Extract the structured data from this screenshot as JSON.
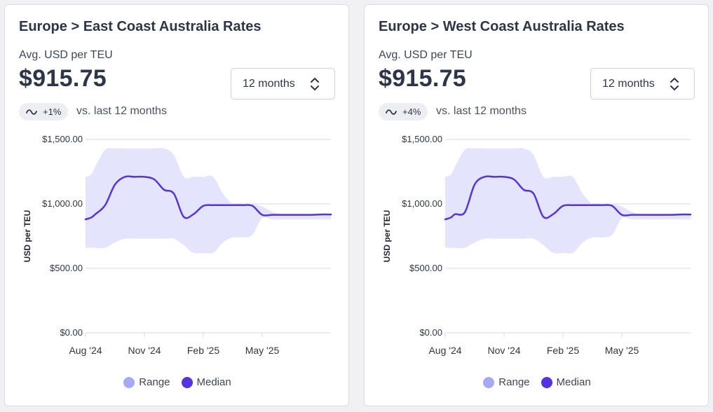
{
  "colors": {
    "range_fill": "#e4e5fc",
    "range_swatch": "#a6a9f6",
    "median": "#5533e0",
    "grid": "#d8dae0",
    "axis_text": "#2d3648"
  },
  "cards": [
    {
      "title": "Europe > East Coast Australia Rates",
      "metric_label": "Avg. USD per TEU",
      "metric_value": "$915.75",
      "period_select": "12 months",
      "period_icon": "chevron-up-down-icon",
      "trend_icon": "tilde-trend-icon",
      "change": "+1%",
      "change_caption": "vs. last 12 months",
      "legend": [
        {
          "label": "Range",
          "swatch": "range"
        },
        {
          "label": "Median",
          "swatch": "median"
        }
      ]
    },
    {
      "title": "Europe > West Coast Australia Rates",
      "metric_label": "Avg. USD per TEU",
      "metric_value": "$915.75",
      "period_select": "12 months",
      "period_icon": "chevron-up-down-icon",
      "trend_icon": "tilde-trend-icon",
      "change": "+4%",
      "change_caption": "vs. last 12 months",
      "legend": [
        {
          "label": "Range",
          "swatch": "range"
        },
        {
          "label": "Median",
          "swatch": "median"
        }
      ]
    }
  ],
  "chart_data": [
    {
      "type": "area",
      "title": "",
      "xlabel": "",
      "ylabel": "USD per TEU",
      "ylim": [
        0,
        1500
      ],
      "yticks": [
        0,
        500,
        1000,
        1500
      ],
      "ytick_labels": [
        "$0.00",
        "$500.00",
        "$1,000.00",
        "$1,500.00"
      ],
      "xticks": [
        "Aug '24",
        "Nov '24",
        "Feb '25",
        "May '25"
      ],
      "x_month_positions": [
        0,
        3,
        6,
        9
      ],
      "x_month_range": [
        0,
        12.5
      ],
      "grid": true,
      "legend_placement": "bottom-center",
      "series": [
        {
          "name": "Range",
          "kind": "band",
          "x": [
            0,
            0.3,
            0.5,
            1,
            1.5,
            2,
            2.5,
            3,
            3.5,
            4,
            4.5,
            5,
            5.5,
            6,
            6.5,
            7,
            7.5,
            8,
            8.5,
            9,
            9.5,
            10,
            10.5,
            11,
            11.5,
            12,
            12.5
          ],
          "low": [
            660,
            660,
            660,
            660,
            700,
            730,
            730,
            730,
            730,
            730,
            730,
            680,
            620,
            620,
            620,
            700,
            740,
            740,
            760,
            890,
            880,
            880,
            880,
            880,
            880,
            880,
            880
          ],
          "high": [
            1210,
            1230,
            1290,
            1420,
            1430,
            1430,
            1430,
            1430,
            1430,
            1430,
            1380,
            1210,
            1210,
            1210,
            1210,
            1080,
            1000,
            1000,
            1000,
            980,
            940,
            920,
            920,
            920,
            920,
            920,
            920
          ]
        },
        {
          "name": "Median",
          "kind": "line",
          "x": [
            0,
            0.3,
            0.5,
            1,
            1.5,
            2,
            2.5,
            3,
            3.5,
            4,
            4.5,
            5,
            5.5,
            6,
            6.5,
            7,
            7.5,
            8,
            8.5,
            9,
            9.5,
            10,
            10.5,
            11,
            11.5,
            12,
            12.5
          ],
          "values": [
            880,
            895,
            920,
            990,
            1150,
            1210,
            1210,
            1210,
            1190,
            1110,
            1080,
            900,
            920,
            985,
            990,
            990,
            990,
            990,
            985,
            915,
            915,
            915,
            915,
            915,
            915,
            918,
            918
          ]
        }
      ]
    },
    {
      "type": "area",
      "title": "",
      "xlabel": "",
      "ylabel": "USD per TEU",
      "ylim": [
        0,
        1500
      ],
      "yticks": [
        0,
        500,
        1000,
        1500
      ],
      "ytick_labels": [
        "$0.00",
        "$500.00",
        "$1,000.00",
        "$1,500.00"
      ],
      "xticks": [
        "Aug '24",
        "Nov '24",
        "Feb '25",
        "May '25"
      ],
      "x_month_positions": [
        0,
        3,
        6,
        9
      ],
      "x_month_range": [
        0,
        12.5
      ],
      "grid": true,
      "legend_placement": "bottom-center",
      "series": [
        {
          "name": "Range",
          "kind": "band",
          "x": [
            0,
            0.3,
            0.5,
            1,
            1.5,
            2,
            2.5,
            3,
            3.5,
            4,
            4.5,
            5,
            5.5,
            6,
            6.5,
            7,
            7.5,
            8,
            8.5,
            9,
            9.5,
            10,
            10.5,
            11,
            11.5,
            12,
            12.5
          ],
          "low": [
            660,
            660,
            660,
            660,
            700,
            730,
            730,
            730,
            730,
            730,
            730,
            680,
            620,
            620,
            620,
            700,
            740,
            740,
            760,
            890,
            880,
            880,
            880,
            880,
            880,
            880,
            880
          ],
          "high": [
            1210,
            1230,
            1290,
            1420,
            1430,
            1430,
            1430,
            1430,
            1430,
            1430,
            1380,
            1210,
            1210,
            1210,
            1210,
            1080,
            1000,
            1000,
            1000,
            980,
            940,
            920,
            920,
            920,
            920,
            920,
            920
          ]
        },
        {
          "name": "Median",
          "kind": "line",
          "x": [
            0,
            0.3,
            0.5,
            1,
            1.5,
            2,
            2.5,
            3,
            3.5,
            4,
            4.5,
            5,
            5.5,
            6,
            6.5,
            7,
            7.5,
            8,
            8.5,
            9,
            9.5,
            10,
            10.5,
            11,
            11.5,
            12,
            12.5
          ],
          "values": [
            880,
            895,
            920,
            935,
            1150,
            1210,
            1210,
            1210,
            1190,
            1110,
            1080,
            900,
            920,
            985,
            990,
            990,
            990,
            990,
            985,
            915,
            915,
            915,
            915,
            915,
            915,
            918,
            918
          ]
        }
      ]
    }
  ]
}
